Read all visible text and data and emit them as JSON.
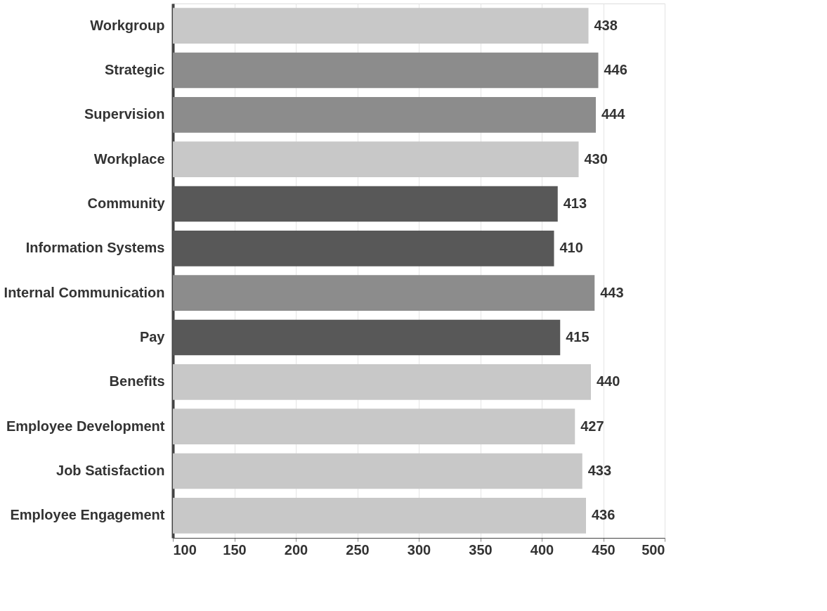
{
  "chart_data": {
    "type": "bar",
    "orientation": "horizontal",
    "categories": [
      "Workgroup",
      "Strategic",
      "Supervision",
      "Workplace",
      "Community",
      "Information Systems",
      "Internal Communication",
      "Pay",
      "Benefits",
      "Employee Development",
      "Job Satisfaction",
      "Employee Engagement"
    ],
    "values": [
      438,
      446,
      444,
      430,
      413,
      410,
      443,
      415,
      440,
      427,
      433,
      436
    ],
    "colors": [
      "#c8c8c8",
      "#8c8c8c",
      "#8c8c8c",
      "#c8c8c8",
      "#585858",
      "#585858",
      "#8c8c8c",
      "#585858",
      "#c8c8c8",
      "#c8c8c8",
      "#c8c8c8",
      "#c8c8c8"
    ],
    "xlim": [
      100,
      500
    ],
    "xticks": [
      100,
      150,
      200,
      250,
      300,
      350,
      400,
      450,
      500
    ],
    "data_labels": true,
    "grid": "x"
  }
}
